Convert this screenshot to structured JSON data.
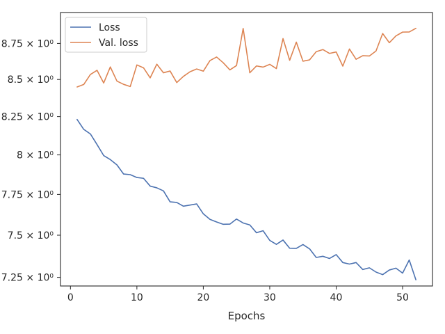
{
  "chart_data": {
    "type": "line",
    "title": "",
    "xlabel": "Epochs",
    "ylabel": "",
    "y_scale": "log",
    "xlim": [
      -1.5,
      54.5
    ],
    "ylim": [
      7.2,
      8.97
    ],
    "grid": false,
    "legend_position": "upper-left",
    "x_ticks": [
      0,
      10,
      20,
      30,
      40,
      50
    ],
    "x_tick_labels": [
      "0",
      "10",
      "20",
      "30",
      "40",
      "50"
    ],
    "y_ticks": [
      7.25,
      7.5,
      7.75,
      8.0,
      8.25,
      8.5,
      8.75
    ],
    "y_tick_labels": [
      "7.25 × 10⁰",
      "7.5 × 10⁰",
      "7.75 × 10⁰",
      "8 × 10⁰",
      "8.25 × 10⁰",
      "8.5 × 10⁰",
      "8.75 × 10⁰"
    ],
    "x": [
      1,
      2,
      3,
      4,
      5,
      6,
      7,
      8,
      9,
      10,
      11,
      12,
      13,
      14,
      15,
      16,
      17,
      18,
      19,
      20,
      21,
      22,
      23,
      24,
      25,
      26,
      27,
      28,
      29,
      30,
      31,
      32,
      33,
      34,
      35,
      36,
      37,
      38,
      39,
      40,
      41,
      42,
      43,
      44,
      45,
      46,
      47,
      48,
      49,
      50,
      51,
      52
    ],
    "series": [
      {
        "name": "Loss",
        "color": "#4c72b0",
        "values": [
          8.231,
          8.166,
          8.136,
          8.067,
          7.996,
          7.97,
          7.936,
          7.878,
          7.874,
          7.856,
          7.851,
          7.802,
          7.791,
          7.772,
          7.704,
          7.7,
          7.677,
          7.684,
          7.691,
          7.63,
          7.596,
          7.58,
          7.566,
          7.567,
          7.598,
          7.574,
          7.562,
          7.515,
          7.527,
          7.469,
          7.445,
          7.471,
          7.422,
          7.421,
          7.444,
          7.418,
          7.367,
          7.374,
          7.361,
          7.384,
          7.337,
          7.328,
          7.337,
          7.296,
          7.306,
          7.281,
          7.266,
          7.293,
          7.304,
          7.275,
          7.352,
          7.236
        ]
      },
      {
        "name": "Val. loss",
        "color": "#dd8452",
        "values": [
          8.449,
          8.466,
          8.534,
          8.563,
          8.476,
          8.586,
          8.489,
          8.467,
          8.452,
          8.6,
          8.58,
          8.511,
          8.605,
          8.546,
          8.558,
          8.479,
          8.521,
          8.553,
          8.572,
          8.557,
          8.63,
          8.655,
          8.615,
          8.566,
          8.596,
          8.856,
          8.546,
          8.593,
          8.585,
          8.604,
          8.575,
          8.784,
          8.632,
          8.759,
          8.626,
          8.635,
          8.692,
          8.707,
          8.68,
          8.69,
          8.592,
          8.711,
          8.639,
          8.664,
          8.662,
          8.697,
          8.82,
          8.755,
          8.803,
          8.83,
          8.831,
          8.857
        ]
      }
    ]
  }
}
